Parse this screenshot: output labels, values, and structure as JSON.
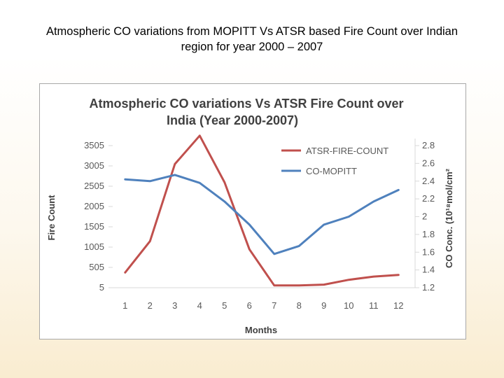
{
  "slide": {
    "title_line1": "Atmospheric CO variations from MOPITT Vs ATSR based Fire Count over Indian",
    "title_line2": "region for year 2000 – 2007"
  },
  "chart_data": {
    "type": "line",
    "title_line1": "Atmospheric CO variations Vs ATSR Fire Count  over",
    "title_line2": "India (Year 2000-2007)",
    "xlabel": "Months",
    "ylabel_left": "Fire Count",
    "ylabel_right": "CO Conc. (10¹⁸mol/cm²",
    "categories": [
      "1",
      "2",
      "3",
      "4",
      "5",
      "6",
      "7",
      "8",
      "9",
      "10",
      "11",
      "12"
    ],
    "y_left_ticks": [
      "5",
      "505",
      "1005",
      "1505",
      "2005",
      "2505",
      "3005",
      "3505"
    ],
    "y_left_lim": [
      5,
      3505
    ],
    "y_right_ticks": [
      "1.2",
      "1.4",
      "1.6",
      "1.8",
      "2",
      "2.2",
      "2.4",
      "2.6",
      "2.8"
    ],
    "y_right_lim": [
      1.2,
      2.8
    ],
    "series": [
      {
        "name": "ATSR-FIRE-COUNT",
        "axis": "left",
        "color": "#c0504d",
        "values": [
          380,
          1150,
          3050,
          3750,
          2600,
          950,
          60,
          60,
          80,
          200,
          280,
          320
        ]
      },
      {
        "name": "CO-MOPITT",
        "axis": "right",
        "color": "#4f81bd",
        "values": [
          2.42,
          2.4,
          2.47,
          2.38,
          2.17,
          1.91,
          1.58,
          1.67,
          1.91,
          2.0,
          2.17,
          2.3
        ]
      }
    ]
  }
}
